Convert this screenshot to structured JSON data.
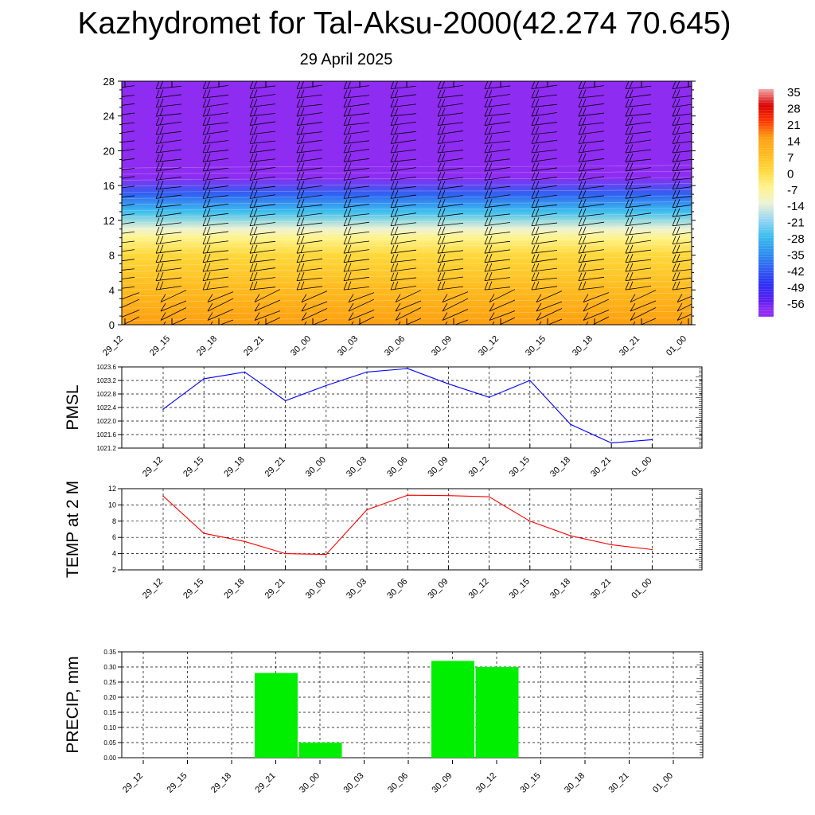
{
  "title": "Kazhydromet for Tal-Aksu-2000(42.274 70.645)",
  "subtitle": "29 April 2025",
  "time_labels": [
    "29_12",
    "29_15",
    "29_18",
    "29_21",
    "30_00",
    "30_03",
    "30_06",
    "30_09",
    "30_12",
    "30_15",
    "30_18",
    "30_21",
    "01_00"
  ],
  "chart_data": [
    {
      "type": "heatmap",
      "title": "",
      "xlabel": "",
      "ylabel": "",
      "x": [
        "29_12",
        "29_15",
        "29_18",
        "29_21",
        "30_00",
        "30_03",
        "30_06",
        "30_09",
        "30_12",
        "30_15",
        "30_18",
        "30_21",
        "01_00"
      ],
      "y_ticks": [
        0,
        4,
        8,
        12,
        16,
        20,
        24,
        28
      ],
      "ylim": [
        0,
        28
      ],
      "color_scale_labels": [
        "35",
        "28",
        "21",
        "14",
        "7",
        "0",
        "-7",
        "-14",
        "-21",
        "-28",
        "-35",
        "-42",
        "-49",
        "-56"
      ],
      "color_scale_values": [
        35,
        28,
        21,
        14,
        7,
        0,
        -7,
        -14,
        -21,
        -28,
        -35,
        -42,
        -49,
        -56
      ],
      "profile": [
        {
          "height": 0,
          "value": 14
        },
        {
          "height": 4,
          "value": 9
        },
        {
          "height": 8,
          "value": 2
        },
        {
          "height": 10,
          "value": -4
        },
        {
          "height": 11,
          "value": -14
        },
        {
          "height": 13,
          "value": -28
        },
        {
          "height": 15,
          "value": -45
        },
        {
          "height": 17,
          "value": -59
        },
        {
          "height": 28,
          "value": -60
        }
      ],
      "wind_barbs": true,
      "colors": {
        "-60": "#8e2cf2",
        "-56": "#5a1df0",
        "-49": "#2b2ef5",
        "-42": "#2f62f2",
        "-35": "#2d93ef",
        "-28": "#3cbfee",
        "-21": "#9ad6f2",
        "-14": "#eef3d2",
        "-7": "#fff38a",
        "0": "#ffd83a",
        "7": "#ffba1f",
        "14": "#ff9f10",
        "21": "#ff3a00",
        "28": "#d90000",
        "35": "#f2a6a6"
      }
    },
    {
      "type": "line",
      "ylabel": "PMSL",
      "xlabel": "",
      "categories": [
        "29_12",
        "29_15",
        "29_18",
        "29_21",
        "30_00",
        "30_03",
        "30_06",
        "30_09",
        "30_12",
        "30_15",
        "30_18",
        "30_21",
        "01_00"
      ],
      "series": [
        {
          "values": [
            1022.35,
            1023.25,
            1023.45,
            1022.6,
            1023.05,
            1023.45,
            1023.55,
            1023.1,
            1022.7,
            1023.2,
            1021.9,
            1021.35,
            1021.45
          ],
          "color": "#0000ff"
        }
      ],
      "y_ticks": [
        "1021.2",
        "1021.6",
        "1022.0",
        "1022.4",
        "1022.8",
        "1023.2",
        "1023.6"
      ],
      "ylim": [
        1021.2,
        1023.6
      ],
      "grid": true
    },
    {
      "type": "line",
      "ylabel": "TEMP at 2 M",
      "xlabel": "",
      "categories": [
        "29_12",
        "29_15",
        "29_18",
        "29_21",
        "30_00",
        "30_03",
        "30_06",
        "30_09",
        "30_12",
        "30_15",
        "30_18",
        "30_21",
        "01_00"
      ],
      "series": [
        {
          "values": [
            11.1,
            6.5,
            5.5,
            4.0,
            3.9,
            9.4,
            11.2,
            11.15,
            11.0,
            8.0,
            6.2,
            5.1,
            4.5
          ],
          "color": "#ff0000"
        }
      ],
      "y_ticks": [
        "2",
        "4",
        "6",
        "8",
        "10",
        "12"
      ],
      "ylim": [
        2,
        12
      ],
      "grid": true
    },
    {
      "type": "bar",
      "ylabel": "PRECIP, mm",
      "xlabel": "",
      "categories": [
        "29_12",
        "29_15",
        "29_18",
        "29_21",
        "30_00",
        "30_03",
        "30_06",
        "30_09",
        "30_12",
        "30_15",
        "30_18",
        "30_21",
        "01_00"
      ],
      "values": [
        0,
        0,
        0.28,
        0.05,
        0,
        0,
        0.32,
        0.3,
        0,
        0,
        0,
        0,
        0
      ],
      "color": "#00ee00",
      "y_ticks": [
        "0.00",
        "0.05",
        "0.10",
        "0.15",
        "0.20",
        "0.25",
        "0.30",
        "0.35"
      ],
      "ylim": [
        0,
        0.35
      ],
      "grid": true
    }
  ]
}
